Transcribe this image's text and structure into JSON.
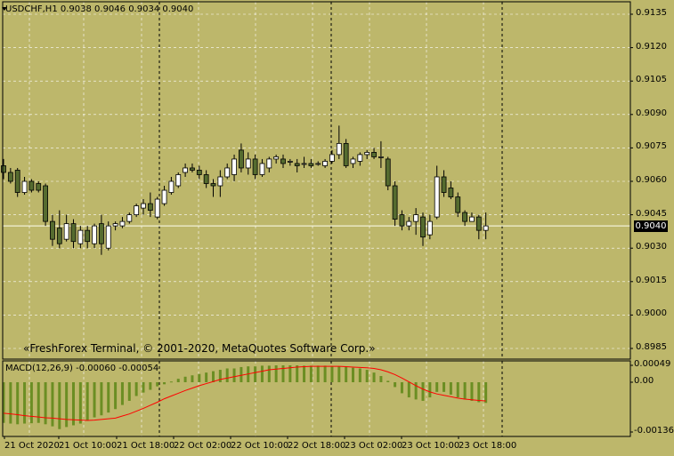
{
  "window": {
    "symbol_header": "USDCHF,H1  0.9038 0.9046 0.9034 0.9040",
    "watermark": "«FreshForex Terminal, © 2001-2020, MetaQuotes Software Corp.»",
    "current_price": "0.9040"
  },
  "macd": {
    "header": "MACD(12,26,9) -0.00060 -0.00054",
    "scale_labels": [
      "0.00049",
      "0.00",
      "-0.00136"
    ]
  },
  "price_scale_labels": [
    "0.9135",
    "0.9120",
    "0.9105",
    "0.9090",
    "0.9075",
    "0.9060",
    "0.9045",
    "0.9030",
    "0.9015",
    "0.9000",
    "0.8985"
  ],
  "time_labels": [
    "21 Oct 2020",
    "21 Oct 10:00",
    "21 Oct 18:00",
    "22 Oct 02:00",
    "22 Oct 10:00",
    "22 Oct 18:00",
    "23 Oct 02:00",
    "23 Oct 10:00",
    "23 Oct 18:00"
  ],
  "colors": {
    "background": "#BDB76B",
    "grid": "#FFFFFF",
    "bull_body": "#FFFFFF",
    "bear_body": "#556B2F",
    "histogram": "#6B8E23",
    "signal": "#FF0000",
    "bid_line": "#FFFFF0"
  },
  "chart_data": {
    "type": "candlestick",
    "timeframe": "H1",
    "ylim": [
      0.898,
      0.9143
    ],
    "candles": [
      {
        "o": 0.9067,
        "h": 0.907,
        "l": 0.9061,
        "c": 0.9064
      },
      {
        "o": 0.9064,
        "h": 0.9066,
        "l": 0.9059,
        "c": 0.906
      },
      {
        "o": 0.9065,
        "h": 0.9066,
        "l": 0.9053,
        "c": 0.9055
      },
      {
        "o": 0.9055,
        "h": 0.9062,
        "l": 0.9054,
        "c": 0.906
      },
      {
        "o": 0.906,
        "h": 0.9061,
        "l": 0.9055,
        "c": 0.9056
      },
      {
        "o": 0.9059,
        "h": 0.906,
        "l": 0.9055,
        "c": 0.9056
      },
      {
        "o": 0.9058,
        "h": 0.9059,
        "l": 0.904,
        "c": 0.9042
      },
      {
        "o": 0.9042,
        "h": 0.9045,
        "l": 0.9031,
        "c": 0.9034
      },
      {
        "o": 0.9039,
        "h": 0.9047,
        "l": 0.903,
        "c": 0.9032
      },
      {
        "o": 0.9034,
        "h": 0.9045,
        "l": 0.9033,
        "c": 0.9041
      },
      {
        "o": 0.9041,
        "h": 0.9043,
        "l": 0.903,
        "c": 0.9033
      },
      {
        "o": 0.9032,
        "h": 0.904,
        "l": 0.903,
        "c": 0.9038
      },
      {
        "o": 0.9038,
        "h": 0.904,
        "l": 0.903,
        "c": 0.9033
      },
      {
        "o": 0.9032,
        "h": 0.9041,
        "l": 0.903,
        "c": 0.904
      },
      {
        "o": 0.9041,
        "h": 0.9045,
        "l": 0.9027,
        "c": 0.9032
      },
      {
        "o": 0.903,
        "h": 0.9042,
        "l": 0.9029,
        "c": 0.904
      },
      {
        "o": 0.904,
        "h": 0.9042,
        "l": 0.9038,
        "c": 0.9041
      },
      {
        "o": 0.904,
        "h": 0.9044,
        "l": 0.9039,
        "c": 0.9042
      },
      {
        "o": 0.9042,
        "h": 0.9046,
        "l": 0.9041,
        "c": 0.9045
      },
      {
        "o": 0.9045,
        "h": 0.905,
        "l": 0.9044,
        "c": 0.9049
      },
      {
        "o": 0.9048,
        "h": 0.9052,
        "l": 0.9045,
        "c": 0.905
      },
      {
        "o": 0.905,
        "h": 0.9055,
        "l": 0.9044,
        "c": 0.9047
      },
      {
        "o": 0.9044,
        "h": 0.9053,
        "l": 0.9043,
        "c": 0.9052
      },
      {
        "o": 0.905,
        "h": 0.9058,
        "l": 0.9049,
        "c": 0.9056
      },
      {
        "o": 0.9055,
        "h": 0.9062,
        "l": 0.9054,
        "c": 0.906
      },
      {
        "o": 0.9058,
        "h": 0.9064,
        "l": 0.9057,
        "c": 0.9063
      },
      {
        "o": 0.9064,
        "h": 0.9068,
        "l": 0.9062,
        "c": 0.9066
      },
      {
        "o": 0.9066,
        "h": 0.9068,
        "l": 0.9064,
        "c": 0.9065
      },
      {
        "o": 0.9065,
        "h": 0.9067,
        "l": 0.9061,
        "c": 0.9063
      },
      {
        "o": 0.9063,
        "h": 0.9065,
        "l": 0.9057,
        "c": 0.9059
      },
      {
        "o": 0.9059,
        "h": 0.9061,
        "l": 0.9053,
        "c": 0.9058
      },
      {
        "o": 0.9058,
        "h": 0.9065,
        "l": 0.9053,
        "c": 0.9062
      },
      {
        "o": 0.9062,
        "h": 0.9068,
        "l": 0.9061,
        "c": 0.9066
      },
      {
        "o": 0.9063,
        "h": 0.9072,
        "l": 0.906,
        "c": 0.907
      },
      {
        "o": 0.9074,
        "h": 0.9077,
        "l": 0.9064,
        "c": 0.9066
      },
      {
        "o": 0.9066,
        "h": 0.9073,
        "l": 0.9063,
        "c": 0.907
      },
      {
        "o": 0.907,
        "h": 0.9072,
        "l": 0.9061,
        "c": 0.9063
      },
      {
        "o": 0.9063,
        "h": 0.907,
        "l": 0.9062,
        "c": 0.9068
      },
      {
        "o": 0.9066,
        "h": 0.9071,
        "l": 0.9064,
        "c": 0.907
      },
      {
        "o": 0.907,
        "h": 0.9072,
        "l": 0.9068,
        "c": 0.9071
      },
      {
        "o": 0.907,
        "h": 0.9072,
        "l": 0.9066,
        "c": 0.9068
      },
      {
        "o": 0.9069,
        "h": 0.907,
        "l": 0.9067,
        "c": 0.9069
      },
      {
        "o": 0.9068,
        "h": 0.907,
        "l": 0.9064,
        "c": 0.9067
      },
      {
        "o": 0.9068,
        "h": 0.9071,
        "l": 0.9066,
        "c": 0.9068
      },
      {
        "o": 0.9068,
        "h": 0.907,
        "l": 0.9066,
        "c": 0.9067
      },
      {
        "o": 0.9068,
        "h": 0.9069,
        "l": 0.9067,
        "c": 0.9068
      },
      {
        "o": 0.9067,
        "h": 0.907,
        "l": 0.9066,
        "c": 0.9069
      },
      {
        "o": 0.9069,
        "h": 0.9074,
        "l": 0.9068,
        "c": 0.9072
      },
      {
        "o": 0.9072,
        "h": 0.9085,
        "l": 0.907,
        "c": 0.9077
      },
      {
        "o": 0.9077,
        "h": 0.9079,
        "l": 0.9066,
        "c": 0.9067
      },
      {
        "o": 0.9068,
        "h": 0.9071,
        "l": 0.9066,
        "c": 0.907
      },
      {
        "o": 0.9069,
        "h": 0.9073,
        "l": 0.9067,
        "c": 0.9072
      },
      {
        "o": 0.9072,
        "h": 0.9074,
        "l": 0.907,
        "c": 0.9073
      },
      {
        "o": 0.9073,
        "h": 0.9075,
        "l": 0.907,
        "c": 0.9071
      },
      {
        "o": 0.9071,
        "h": 0.9078,
        "l": 0.9066,
        "c": 0.9071
      },
      {
        "o": 0.907,
        "h": 0.9071,
        "l": 0.9056,
        "c": 0.9058
      },
      {
        "o": 0.9058,
        "h": 0.906,
        "l": 0.904,
        "c": 0.9043
      },
      {
        "o": 0.9045,
        "h": 0.9047,
        "l": 0.9038,
        "c": 0.904
      },
      {
        "o": 0.904,
        "h": 0.9044,
        "l": 0.9038,
        "c": 0.9042
      },
      {
        "o": 0.9042,
        "h": 0.9048,
        "l": 0.9036,
        "c": 0.9045
      },
      {
        "o": 0.9044,
        "h": 0.9046,
        "l": 0.9031,
        "c": 0.9035
      },
      {
        "o": 0.9036,
        "h": 0.9045,
        "l": 0.9034,
        "c": 0.9042
      },
      {
        "o": 0.9044,
        "h": 0.9067,
        "l": 0.9043,
        "c": 0.9062
      },
      {
        "o": 0.9062,
        "h": 0.9065,
        "l": 0.9053,
        "c": 0.9055
      },
      {
        "o": 0.9057,
        "h": 0.906,
        "l": 0.9052,
        "c": 0.9053
      },
      {
        "o": 0.9053,
        "h": 0.9055,
        "l": 0.9044,
        "c": 0.9046
      },
      {
        "o": 0.9046,
        "h": 0.9047,
        "l": 0.904,
        "c": 0.9042
      },
      {
        "o": 0.9042,
        "h": 0.9046,
        "l": 0.9042,
        "c": 0.9044
      },
      {
        "o": 0.9044,
        "h": 0.9045,
        "l": 0.9034,
        "c": 0.9038
      },
      {
        "o": 0.9038,
        "h": 0.9046,
        "l": 0.9034,
        "c": 0.904
      }
    ],
    "macd_histogram": [
      -0.00118,
      -0.0012,
      -0.00122,
      -0.0012,
      -0.00119,
      -0.00118,
      -0.00122,
      -0.00128,
      -0.00136,
      -0.0013,
      -0.00125,
      -0.0012,
      -0.00112,
      -0.00102,
      -0.00096,
      -0.00088,
      -0.00078,
      -0.00066,
      -0.00054,
      -0.0004,
      -0.0003,
      -0.00022,
      -0.00012,
      -6e-05,
      2e-05,
      0.0001,
      0.00016,
      0.0002,
      0.00024,
      0.00028,
      0.00032,
      0.00036,
      0.0004,
      0.0004,
      0.00044,
      0.00046,
      0.00046,
      0.00048,
      0.00048,
      0.00049,
      0.00049,
      0.00049,
      0.00049,
      0.00048,
      0.00048,
      0.00048,
      0.00048,
      0.00046,
      0.00046,
      0.00044,
      0.00042,
      0.0004,
      0.00036,
      0.00028,
      0.00018,
      4e-05,
      -0.00014,
      -0.00032,
      -0.00044,
      -0.0005,
      -0.00054,
      -0.00044,
      -0.00028,
      -0.00028,
      -0.00036,
      -0.00044,
      -0.0005,
      -0.00054,
      -0.00058,
      -0.0006
    ],
    "macd_signal": [
      -0.0009,
      -0.00092,
      -0.00094,
      -0.00097,
      -0.00099,
      -0.00101,
      -0.00103,
      -0.00104,
      -0.00106,
      -0.00108,
      -0.00109,
      -0.0011,
      -0.00111,
      -0.0011,
      -0.00108,
      -0.00106,
      -0.00104,
      -0.00098,
      -0.00092,
      -0.00084,
      -0.00076,
      -0.00067,
      -0.00058,
      -0.00048,
      -0.0004,
      -0.00032,
      -0.00024,
      -0.00017,
      -0.0001,
      -4e-05,
      2e-05,
      8e-05,
      0.00012,
      0.00016,
      0.0002,
      0.00024,
      0.00028,
      0.00032,
      0.00036,
      0.00038,
      0.0004,
      0.00042,
      0.00044,
      0.00045,
      0.00046,
      0.00046,
      0.00046,
      0.00046,
      0.00046,
      0.00045,
      0.00044,
      0.00043,
      0.00042,
      0.0004,
      0.00036,
      0.0003,
      0.00022,
      0.00012,
      1e-05,
      -0.0001,
      -0.0002,
      -0.00028,
      -0.00034,
      -0.00038,
      -0.00042,
      -0.00046,
      -0.00049,
      -0.00051,
      -0.00053,
      -0.00054
    ],
    "macd_ylim": [
      -0.00145,
      0.00058
    ]
  }
}
